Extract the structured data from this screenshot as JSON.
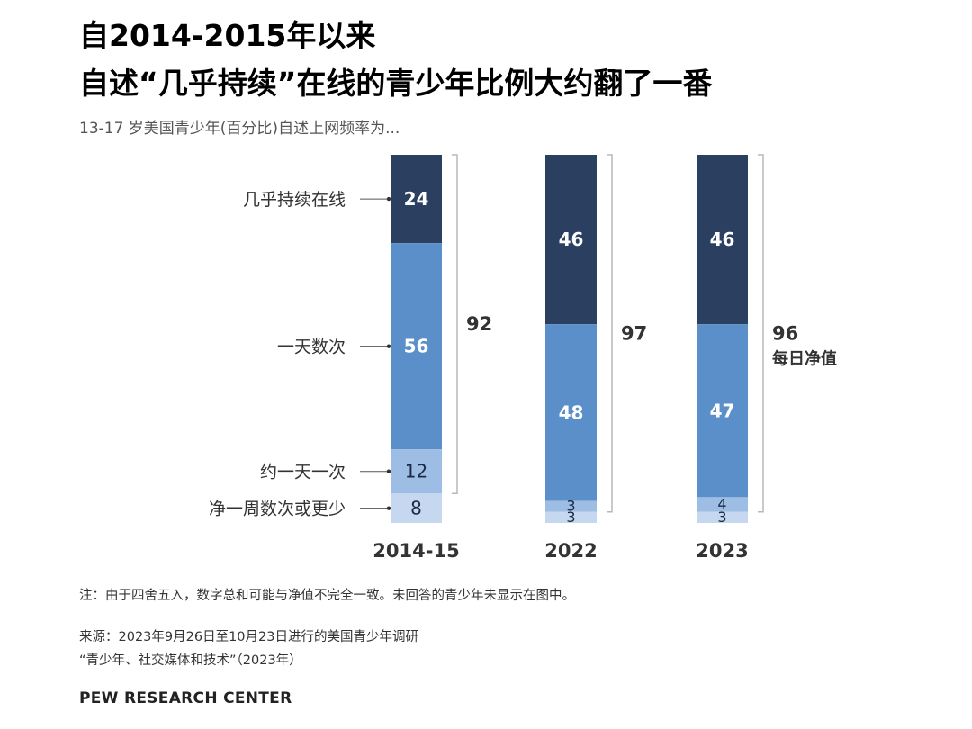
{
  "title_line1": "自2014-2015年以来",
  "title_line2": "自述“几乎持续”在线的青少年比例大约翻了一番",
  "subtitle": "13-17 岁美国青少年(百分比)自述上网频率为...",
  "note": "注：由于四舍五入，数字总和可能与净值不完全一致。未回答的青少年未显示在图中。",
  "source_line1": "来源：2023年9月26日至10月23日进行的美国青少年调研",
  "source_line2": "“青少年、社交媒体和技术”（2023年）",
  "brand": "PEW RESEARCH CENTER",
  "colors": {
    "almost_constantly": "#2b4061",
    "several_times_day": "#5b8fc9",
    "about_once_day": "#9ebde4",
    "less_often": "#c6d8ef"
  },
  "chart_data": {
    "type": "stacked-bar",
    "categories": [
      "2014-15",
      "2022",
      "2023"
    ],
    "series": [
      {
        "name": "几乎持续在线",
        "values": [
          24,
          46,
          46
        ]
      },
      {
        "name": "一天数次",
        "values": [
          56,
          48,
          47
        ]
      },
      {
        "name": "约一天一次",
        "values": [
          12,
          3,
          4
        ]
      },
      {
        "name": "净一周数次或更少",
        "values": [
          8,
          3,
          3
        ]
      }
    ],
    "net_values": [
      92,
      97,
      96
    ],
    "net_label": "每日净值"
  }
}
